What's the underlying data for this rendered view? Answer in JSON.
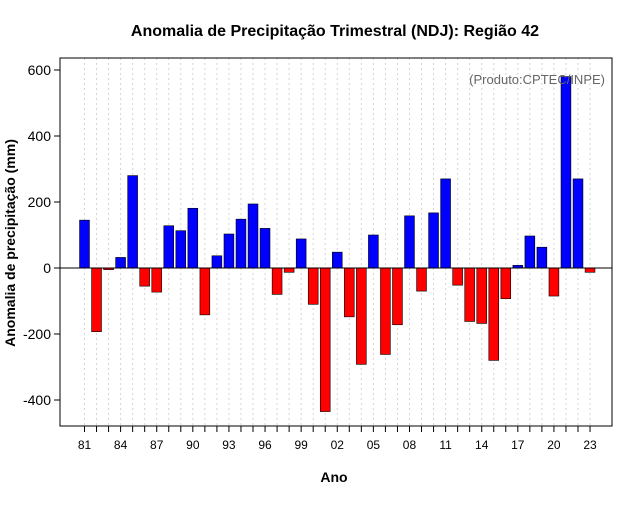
{
  "chart_data": {
    "type": "bar",
    "title": "Anomalia de Precipitação Trimestral (NDJ): Região 42",
    "xlabel": "Ano",
    "ylabel": "Anomalia de precipitação (mm)",
    "credit": "(Produto:CPTEC/INPE)",
    "ylim": [
      -480,
      640
    ],
    "yticks": [
      -400,
      -200,
      0,
      200,
      400,
      600
    ],
    "ytick_labels": [
      "-400",
      "-200",
      "0",
      "200",
      "400",
      "600"
    ],
    "xtick_labels": [
      "81",
      "84",
      "87",
      "90",
      "93",
      "96",
      "99",
      "02",
      "05",
      "08",
      "11",
      "14",
      "17",
      "20",
      "23"
    ],
    "years": [
      "81",
      "82",
      "83",
      "84",
      "85",
      "86",
      "87",
      "88",
      "89",
      "90",
      "91",
      "92",
      "93",
      "94",
      "95",
      "96",
      "97",
      "98",
      "99",
      "00",
      "01",
      "02",
      "03",
      "04",
      "05",
      "06",
      "07",
      "08",
      "09",
      "10",
      "11",
      "12",
      "13",
      "14",
      "15",
      "16",
      "17",
      "18",
      "19",
      "20",
      "21",
      "22",
      "23"
    ],
    "values": [
      145,
      -193,
      -5,
      32,
      280,
      -55,
      -73,
      128,
      113,
      181,
      -142,
      37,
      103,
      148,
      194,
      120,
      -80,
      -13,
      88,
      -110,
      -435,
      48,
      -148,
      -292,
      100,
      -262,
      -172,
      158,
      -70,
      167,
      270,
      -52,
      -162,
      -168,
      -280,
      -93,
      8,
      97,
      63,
      -85,
      580,
      270,
      -13
    ],
    "colors": {
      "positive": "#0000ff",
      "negative": "#ff0000",
      "grid": "#d3d3d3",
      "frame": "#000000"
    },
    "grid": true,
    "legend": "none"
  }
}
